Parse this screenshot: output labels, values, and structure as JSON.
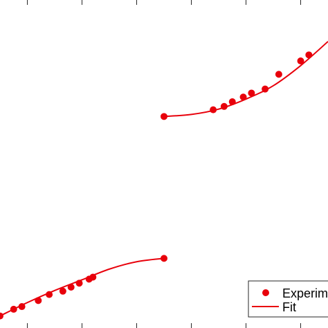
{
  "chart_data": {
    "type": "scatter",
    "title": "",
    "xlabel": "",
    "ylabel": "",
    "grid": false,
    "legend_position": "bottom-right",
    "colors": {
      "series": "#e8000b",
      "axes": "#262626",
      "legend_border": "#262626"
    },
    "series": [
      {
        "name": "Experim",
        "kind": "marker",
        "segments": [
          {
            "x": [
              1.5,
              1.75,
              1.9,
              2.2,
              2.4,
              2.65,
              2.8,
              2.95,
              3.13,
              3.2,
              4.5
            ],
            "y": [
              -11.1,
              -10.6,
              -10.4,
              -9.95,
              -9.5,
              -9.25,
              -8.95,
              -8.65,
              -8.35,
              -8.2,
              -6.8
            ]
          },
          {
            "x": [
              4.5,
              5.4,
              5.6,
              5.75,
              5.95,
              6.1,
              6.35,
              6.6,
              7.0,
              7.15
            ],
            "y": [
              3.8,
              4.3,
              4.55,
              4.9,
              5.25,
              5.55,
              5.85,
              6.95,
              7.95,
              8.4
            ]
          }
        ]
      },
      {
        "name": "Fit",
        "kind": "line",
        "segments": [
          {
            "x": [
              1.5,
              2.0,
              2.5,
              3.0,
              3.5,
              4.0,
              4.5
            ],
            "y": [
              -11.1,
              -10.1,
              -9.2,
              -8.4,
              -7.6,
              -7.05,
              -6.8
            ]
          },
          {
            "x": [
              4.5,
              5.0,
              5.5,
              6.0,
              6.5,
              7.0,
              7.5
            ],
            "y": [
              3.8,
              3.95,
              4.35,
              5.1,
              6.1,
              7.6,
              9.4
            ]
          }
        ]
      }
    ],
    "xlim": [
      1.5,
      7.5
    ],
    "ylim": [
      -12,
      12.5
    ],
    "xticks": [
      2,
      3,
      4,
      5,
      6,
      7
    ]
  }
}
